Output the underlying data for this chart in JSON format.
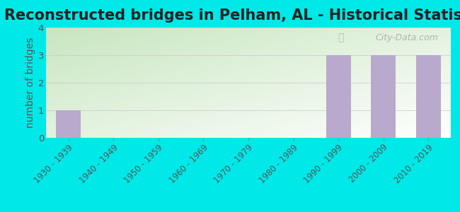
{
  "title": "Reconstructed bridges in Pelham, AL - Historical Statistics",
  "categories": [
    "1930 - 1939",
    "1940 - 1949",
    "1950 - 1959",
    "1960 - 1969",
    "1970 - 1979",
    "1980 - 1989",
    "1990 - 1999",
    "2000 - 2009",
    "2010 - 2019"
  ],
  "values": [
    1,
    0,
    0,
    0,
    0,
    0,
    3,
    3,
    3
  ],
  "bar_color": "#b9a9cc",
  "ylabel": "number of bridges",
  "ylim": [
    0,
    4
  ],
  "yticks": [
    0,
    1,
    2,
    3,
    4
  ],
  "background_outer": "#00e8e8",
  "background_plot_topleft": "#c8e6c0",
  "background_plot_bottomright": "#ffffff",
  "grid_color": "#cccccc",
  "title_fontsize": 15,
  "ylabel_fontsize": 10,
  "tick_fontsize": 8.5,
  "watermark_text": "City-Data.com"
}
